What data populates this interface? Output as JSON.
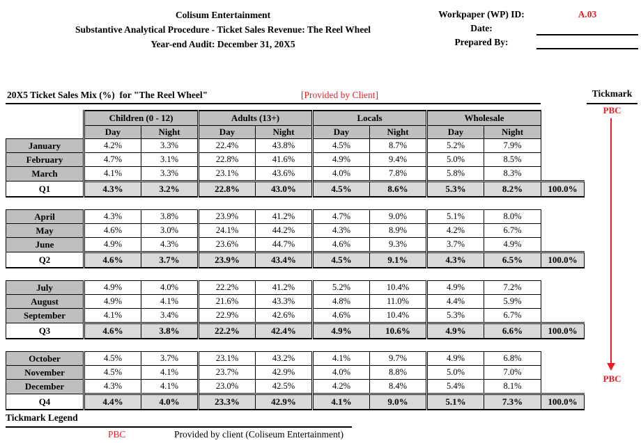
{
  "colors": {
    "red": "#ed1c24",
    "header_gray": "#bfbfbf",
    "subtotal_gray": "#d9d9d9",
    "border": "#000000"
  },
  "header": {
    "company": "Colisum Entertainment",
    "procedure": "Substantive Analytical Procedure - Ticket Sales Revenue: The Reel Wheel",
    "audit": "Year-end Audit: December 31, 20X5",
    "wp_id_label": "Workpaper (WP) ID:",
    "wp_id_value": "A.03",
    "date_label": "Date:",
    "date_value": "",
    "prepared_by_label": "Prepared By:",
    "prepared_by_value": ""
  },
  "sheet": {
    "title": "20X5 Ticket Sales Mix (%)  for \"The Reel Wheel\"",
    "client_note": "[Provided by Client]",
    "tickmark_header": "Tickmark",
    "tickmark_top": "PBC",
    "tickmark_bottom": "PBC"
  },
  "table": {
    "groups": [
      "Children (0 - 12)",
      "Adults (13+)",
      "Locals",
      "Wholesale"
    ],
    "sub_headers": [
      "Day",
      "Night"
    ],
    "quarters": [
      {
        "label": "Q1",
        "months": [
          {
            "name": "January",
            "values": [
              "4.2%",
              "3.3%",
              "22.4%",
              "43.8%",
              "4.5%",
              "8.7%",
              "5.2%",
              "7.9%"
            ]
          },
          {
            "name": "February",
            "values": [
              "4.7%",
              "3.1%",
              "22.8%",
              "41.6%",
              "4.9%",
              "9.4%",
              "5.0%",
              "8.5%"
            ]
          },
          {
            "name": "March",
            "values": [
              "4.1%",
              "3.3%",
              "23.1%",
              "43.6%",
              "4.0%",
              "7.8%",
              "5.8%",
              "8.3%"
            ]
          }
        ],
        "totals": [
          "4.3%",
          "3.2%",
          "22.8%",
          "43.0%",
          "4.5%",
          "8.6%",
          "5.3%",
          "8.2%"
        ],
        "grand_total": "100.0%"
      },
      {
        "label": "Q2",
        "months": [
          {
            "name": "April",
            "values": [
              "4.3%",
              "3.8%",
              "23.9%",
              "41.2%",
              "4.7%",
              "9.0%",
              "5.1%",
              "8.0%"
            ]
          },
          {
            "name": "May",
            "values": [
              "4.6%",
              "3.0%",
              "24.1%",
              "44.2%",
              "4.3%",
              "8.9%",
              "4.2%",
              "6.7%"
            ]
          },
          {
            "name": "June",
            "values": [
              "4.9%",
              "4.3%",
              "23.6%",
              "44.7%",
              "4.6%",
              "9.3%",
              "3.7%",
              "4.9%"
            ]
          }
        ],
        "totals": [
          "4.6%",
          "3.7%",
          "23.9%",
          "43.4%",
          "4.5%",
          "9.1%",
          "4.3%",
          "6.5%"
        ],
        "grand_total": "100.0%"
      },
      {
        "label": "Q3",
        "months": [
          {
            "name": "July",
            "values": [
              "4.9%",
              "4.0%",
              "22.2%",
              "41.2%",
              "5.2%",
              "10.4%",
              "4.9%",
              "7.2%"
            ]
          },
          {
            "name": "August",
            "values": [
              "4.9%",
              "4.1%",
              "21.6%",
              "43.3%",
              "4.8%",
              "11.0%",
              "4.4%",
              "5.9%"
            ]
          },
          {
            "name": "September",
            "values": [
              "4.1%",
              "3.4%",
              "22.9%",
              "42.6%",
              "4.6%",
              "10.4%",
              "5.3%",
              "6.7%"
            ]
          }
        ],
        "totals": [
          "4.6%",
          "3.8%",
          "22.2%",
          "42.4%",
          "4.9%",
          "10.6%",
          "4.9%",
          "6.6%"
        ],
        "grand_total": "100.0%"
      },
      {
        "label": "Q4",
        "months": [
          {
            "name": "October",
            "values": [
              "4.5%",
              "3.7%",
              "23.1%",
              "43.2%",
              "4.1%",
              "9.7%",
              "4.9%",
              "6.8%"
            ]
          },
          {
            "name": "November",
            "values": [
              "4.5%",
              "4.1%",
              "23.7%",
              "42.9%",
              "4.0%",
              "8.8%",
              "5.0%",
              "7.0%"
            ]
          },
          {
            "name": "December",
            "values": [
              "4.3%",
              "4.1%",
              "23.0%",
              "42.5%",
              "4.2%",
              "8.4%",
              "5.4%",
              "8.1%"
            ]
          }
        ],
        "totals": [
          "4.4%",
          "4.0%",
          "23.3%",
          "42.9%",
          "4.1%",
          "9.0%",
          "5.1%",
          "7.3%"
        ],
        "grand_total": "100.0%"
      }
    ]
  },
  "legend": {
    "title": "Tickmark Legend",
    "items": [
      {
        "mark": "PBC",
        "description": "Provided by client (Coliseum Entertainment)"
      }
    ]
  }
}
